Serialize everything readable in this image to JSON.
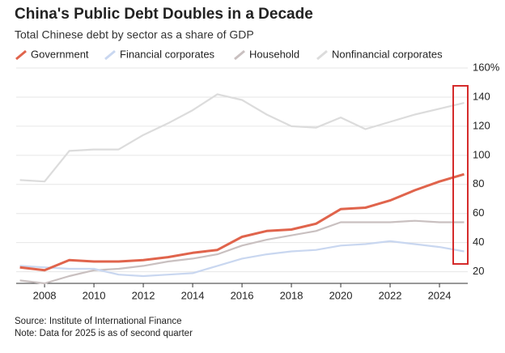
{
  "chart_data": {
    "type": "line",
    "title": "China's Public Debt Doubles in a Decade",
    "subtitle": "Total Chinese debt by sector as a share of GDP",
    "x": [
      2007,
      2008,
      2009,
      2010,
      2011,
      2012,
      2013,
      2014,
      2015,
      2016,
      2017,
      2018,
      2019,
      2020,
      2021,
      2022,
      2023,
      2024,
      2025
    ],
    "series": [
      {
        "name": "Government",
        "color": "#e0644c",
        "values": [
          23,
          21,
          28,
          27,
          27,
          28,
          30,
          33,
          35,
          44,
          48,
          49,
          53,
          63,
          64,
          69,
          76,
          82,
          87
        ]
      },
      {
        "name": "Financial corporates",
        "color": "#c9d7f0",
        "values": [
          24,
          23,
          22,
          22,
          18,
          17,
          18,
          19,
          24,
          29,
          32,
          34,
          35,
          38,
          39,
          41,
          39,
          37,
          34
        ]
      },
      {
        "name": "Household",
        "color": "#c9c0c0",
        "values": [
          14,
          12,
          17,
          21,
          22,
          24,
          27,
          29,
          32,
          38,
          42,
          45,
          48,
          54,
          54,
          54,
          55,
          54,
          54
        ]
      },
      {
        "name": "Nonfinancial corporates",
        "color": "#dcdcdc",
        "values": [
          83,
          82,
          103,
          104,
          104,
          114,
          122,
          131,
          142,
          138,
          128,
          120,
          119,
          126,
          118,
          123,
          128,
          132,
          136
        ]
      }
    ],
    "xlim": [
      2006.85,
      2025.54
    ],
    "xticks": [
      2008,
      2010,
      2012,
      2014,
      2016,
      2018,
      2020,
      2022,
      2024
    ],
    "ylim": [
      12,
      160
    ],
    "yticks": [
      20,
      40,
      60,
      80,
      100,
      120,
      140,
      {
        "value": 160,
        "label": "160%"
      }
    ],
    "grid": true,
    "source": "Source: Institute of International Finance",
    "note": "Note: Data for 2025 is as of second quarter"
  }
}
